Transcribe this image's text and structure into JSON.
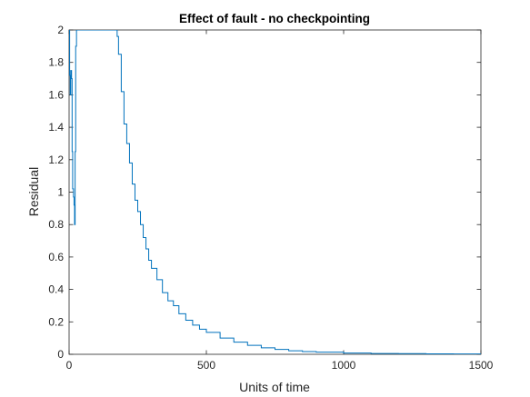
{
  "chart_data": {
    "type": "line",
    "title": "Effect of fault - no checkpointing",
    "xlabel": "Units of time",
    "ylabel": "Residual",
    "xlim": [
      0,
      1500
    ],
    "ylim": [
      0,
      2
    ],
    "xticks": [
      0,
      500,
      1000,
      1500
    ],
    "xtick_labels": [
      "0",
      "500",
      "1000",
      "1500"
    ],
    "yticks": [
      0,
      0.2,
      0.4,
      0.6,
      0.8,
      1,
      1.2,
      1.4,
      1.6,
      1.8,
      2
    ],
    "ytick_labels": [
      "0",
      "0.2",
      "0.4",
      "0.6",
      "0.8",
      "1",
      "1.2",
      "1.4",
      "1.6",
      "1.8",
      "2"
    ],
    "grid": false,
    "series_color": "#0072bd",
    "series": [
      {
        "x": [
          0,
          2,
          4,
          6,
          9,
          11,
          13,
          16,
          18,
          20,
          22,
          24,
          27,
          30,
          35,
          170,
          175,
          180,
          190,
          200,
          210,
          220,
          230,
          240,
          250,
          260,
          270,
          280,
          290,
          300,
          320,
          340,
          360,
          380,
          400,
          425,
          450,
          475,
          500,
          550,
          600,
          650,
          700,
          750,
          800,
          850,
          900,
          1000,
          1100,
          1200,
          1300,
          1400,
          1500
        ],
        "y": [
          2.0,
          1.72,
          1.6,
          1.75,
          1.7,
          1.25,
          1.02,
          0.97,
          0.92,
          0.8,
          1.25,
          1.9,
          2.0,
          2.0,
          2.0,
          2.0,
          1.96,
          1.85,
          1.62,
          1.42,
          1.3,
          1.18,
          1.05,
          0.95,
          0.88,
          0.8,
          0.72,
          0.65,
          0.58,
          0.53,
          0.46,
          0.38,
          0.33,
          0.3,
          0.25,
          0.21,
          0.18,
          0.155,
          0.135,
          0.1,
          0.075,
          0.055,
          0.04,
          0.03,
          0.022,
          0.017,
          0.013,
          0.008,
          0.005,
          0.004,
          0.003,
          0.002,
          0.001
        ]
      }
    ]
  }
}
